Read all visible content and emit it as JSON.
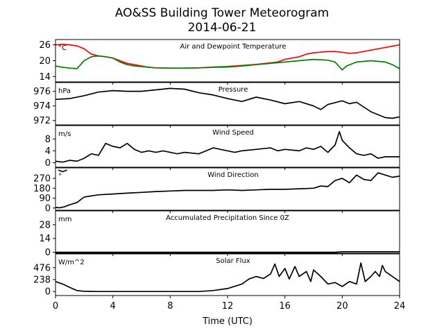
{
  "title_line1": "AO&SS Building Tower Meteorogram",
  "title_line2": "2014-06-21",
  "chart_data": {
    "type": "line",
    "xlabel": "Time (UTC)",
    "xlim": [
      0,
      24
    ],
    "xticks": [
      0,
      4,
      8,
      12,
      16,
      20,
      24
    ],
    "panels": [
      {
        "key": "temp",
        "title": "Air and Dewpoint Temperature",
        "unit": "°C",
        "ylim": [
          12,
          28
        ],
        "yticks": [
          14,
          20,
          26
        ],
        "series": [
          {
            "color": "#ff0000",
            "points": [
              [
                0,
                26
              ],
              [
                0.5,
                26.2
              ],
              [
                1,
                26
              ],
              [
                1.5,
                25.6
              ],
              [
                2,
                24.5
              ],
              [
                2.5,
                22.5
              ],
              [
                3,
                21.8
              ],
              [
                3.5,
                21.5
              ],
              [
                4,
                21
              ],
              [
                4.5,
                20
              ],
              [
                5,
                19
              ],
              [
                5.5,
                18.5
              ],
              [
                6,
                18
              ],
              [
                6.5,
                17.5
              ],
              [
                7,
                17.3
              ],
              [
                8,
                17.2
              ],
              [
                9,
                17.2
              ],
              [
                10,
                17.3
              ],
              [
                11,
                17.6
              ],
              [
                12,
                17.8
              ],
              [
                13,
                18.2
              ],
              [
                14,
                18.6
              ],
              [
                15,
                19.2
              ],
              [
                15.5,
                19.5
              ],
              [
                16,
                20.5
              ],
              [
                17,
                21.5
              ],
              [
                17.5,
                22.5
              ],
              [
                18,
                23
              ],
              [
                19,
                23.5
              ],
              [
                19.5,
                23.5
              ],
              [
                20,
                23.2
              ],
              [
                20.5,
                22.8
              ],
              [
                21,
                23
              ],
              [
                21.5,
                23.5
              ],
              [
                22,
                24
              ],
              [
                22.5,
                24.5
              ],
              [
                23,
                25
              ],
              [
                23.5,
                25.5
              ],
              [
                24,
                26
              ]
            ]
          },
          {
            "color": "#008000",
            "points": [
              [
                0,
                18
              ],
              [
                0.5,
                17.5
              ],
              [
                1,
                17.2
              ],
              [
                1.5,
                17
              ],
              [
                2,
                20
              ],
              [
                2.5,
                21.5
              ],
              [
                3,
                21.8
              ],
              [
                3.5,
                21.5
              ],
              [
                4,
                21
              ],
              [
                4.5,
                19.5
              ],
              [
                5,
                18.5
              ],
              [
                5.5,
                18
              ],
              [
                6,
                17.8
              ],
              [
                7,
                17.3
              ],
              [
                8,
                17.2
              ],
              [
                9,
                17.2
              ],
              [
                10,
                17.3
              ],
              [
                11,
                17.5
              ],
              [
                12,
                17.6
              ],
              [
                13,
                18
              ],
              [
                14,
                18.5
              ],
              [
                15,
                19
              ],
              [
                16,
                19.5
              ],
              [
                17,
                20
              ],
              [
                18,
                20.5
              ],
              [
                19,
                20.2
              ],
              [
                19.5,
                19.5
              ],
              [
                20,
                16.5
              ],
              [
                20.3,
                18
              ],
              [
                21,
                19.5
              ],
              [
                22,
                20
              ],
              [
                23,
                19.5
              ],
              [
                23.5,
                18.5
              ],
              [
                24,
                17
              ]
            ]
          }
        ]
      },
      {
        "key": "pressure",
        "title": "Pressure",
        "unit": "hPa",
        "ylim": [
          971.4,
          977.2
        ],
        "yticks": [
          972,
          974,
          976
        ],
        "series": [
          {
            "color": "#000000",
            "points": [
              [
                0,
                974.9
              ],
              [
                1,
                975
              ],
              [
                2,
                975.4
              ],
              [
                3,
                975.9
              ],
              [
                4,
                976.1
              ],
              [
                5,
                976
              ],
              [
                6,
                976
              ],
              [
                7,
                976.2
              ],
              [
                8,
                976.4
              ],
              [
                9,
                976.3
              ],
              [
                10,
                975.8
              ],
              [
                11,
                975.5
              ],
              [
                12,
                975
              ],
              [
                13,
                974.6
              ],
              [
                14,
                975.2
              ],
              [
                15,
                974.8
              ],
              [
                16,
                974.3
              ],
              [
                17,
                974.6
              ],
              [
                18,
                974
              ],
              [
                18.5,
                973.5
              ],
              [
                19,
                974.2
              ],
              [
                20,
                974.7
              ],
              [
                20.5,
                974.3
              ],
              [
                21,
                974.5
              ],
              [
                22,
                973.2
              ],
              [
                23,
                972.4
              ],
              [
                23.5,
                972.3
              ],
              [
                24,
                972.5
              ]
            ]
          }
        ]
      },
      {
        "key": "wspd",
        "title": "Wind Speed",
        "unit": "m/s",
        "ylim": [
          -1.5,
          12.5
        ],
        "yticks": [
          0,
          4,
          8
        ],
        "series": [
          {
            "color": "#000000",
            "points": [
              [
                0,
                0.5
              ],
              [
                0.5,
                0.2
              ],
              [
                1,
                0.8
              ],
              [
                1.5,
                0.5
              ],
              [
                2,
                1.5
              ],
              [
                2.5,
                3
              ],
              [
                3,
                2.5
              ],
              [
                3.5,
                6.5
              ],
              [
                4,
                5.5
              ],
              [
                4.5,
                5
              ],
              [
                5,
                6.5
              ],
              [
                5.5,
                4.5
              ],
              [
                6,
                3.5
              ],
              [
                6.5,
                4
              ],
              [
                7,
                3.5
              ],
              [
                7.5,
                4
              ],
              [
                8,
                3.5
              ],
              [
                8.5,
                3
              ],
              [
                9,
                3.5
              ],
              [
                10,
                3
              ],
              [
                11,
                5
              ],
              [
                11.5,
                4.5
              ],
              [
                12,
                4
              ],
              [
                12.5,
                3.5
              ],
              [
                13,
                4
              ],
              [
                14,
                4.5
              ],
              [
                15,
                5
              ],
              [
                15.5,
                4
              ],
              [
                16,
                4.5
              ],
              [
                17,
                4
              ],
              [
                17.5,
                5
              ],
              [
                18,
                4.5
              ],
              [
                18.5,
                5.5
              ],
              [
                19,
                3.5
              ],
              [
                19.5,
                6
              ],
              [
                19.8,
                10.5
              ],
              [
                20,
                7.5
              ],
              [
                20.5,
                5
              ],
              [
                21,
                3
              ],
              [
                21.5,
                2.5
              ],
              [
                22,
                3
              ],
              [
                22.5,
                1.5
              ],
              [
                23,
                2
              ],
              [
                24,
                2
              ]
            ]
          }
        ]
      },
      {
        "key": "wdir",
        "title": "Wind Direction",
        "unit": "°",
        "ylim": [
          -20,
          365
        ],
        "yticks": [
          0,
          90,
          180,
          270
        ],
        "series": [
          {
            "color": "#000000",
            "points": [
              [
                0,
                5
              ],
              [
                0.3,
                2
              ],
              [
                0.6,
                10
              ],
              [
                1,
                30
              ],
              [
                1.5,
                50
              ],
              [
                2,
                100
              ],
              [
                3,
                120
              ],
              [
                4,
                128
              ],
              [
                5,
                135
              ],
              [
                6,
                142
              ],
              [
                7,
                150
              ],
              [
                8,
                155
              ],
              [
                9,
                160
              ],
              [
                10,
                160
              ],
              [
                11,
                160
              ],
              [
                12,
                165
              ],
              [
                13,
                160
              ],
              [
                14,
                165
              ],
              [
                15,
                170
              ],
              [
                16,
                170
              ],
              [
                17,
                175
              ],
              [
                18,
                180
              ],
              [
                18.5,
                200
              ],
              [
                19,
                195
              ],
              [
                19.5,
                250
              ],
              [
                20,
                270
              ],
              [
                20.5,
                230
              ],
              [
                21,
                300
              ],
              [
                21.5,
                260
              ],
              [
                22,
                250
              ],
              [
                22.5,
                320
              ],
              [
                23,
                300
              ],
              [
                23.5,
                280
              ],
              [
                24,
                290
              ]
            ]
          },
          {
            "color": "#000000",
            "points": [
              [
                0.2,
                345
              ],
              [
                0.5,
                330
              ],
              [
                0.8,
                345
              ]
            ]
          }
        ]
      },
      {
        "key": "precip",
        "title": "Accumulated Precipitation Since 0Z",
        "unit": "mm",
        "ylim": [
          -1,
          42
        ],
        "yticks": [
          0,
          14,
          28
        ],
        "series": [
          {
            "color": "#000000",
            "points": [
              [
                0,
                0
              ],
              [
                19.5,
                0
              ],
              [
                20,
                0.5
              ],
              [
                24,
                0.5
              ]
            ]
          }
        ]
      },
      {
        "key": "solar",
        "title": "Solar Flux",
        "unit": "W/m^2",
        "ylim": [
          -80,
          750
        ],
        "yticks": [
          0,
          238,
          476
        ],
        "series": [
          {
            "color": "#000000",
            "points": [
              [
                0,
                200
              ],
              [
                0.5,
                150
              ],
              [
                1,
                80
              ],
              [
                1.5,
                20
              ],
              [
                2,
                5
              ],
              [
                3,
                0
              ],
              [
                8,
                0
              ],
              [
                10,
                0
              ],
              [
                11,
                20
              ],
              [
                12,
                60
              ],
              [
                13,
                150
              ],
              [
                13.5,
                250
              ],
              [
                14,
                300
              ],
              [
                14.5,
                260
              ],
              [
                15,
                350
              ],
              [
                15.3,
                550
              ],
              [
                15.6,
                300
              ],
              [
                16,
                460
              ],
              [
                16.3,
                250
              ],
              [
                16.7,
                500
              ],
              [
                17,
                300
              ],
              [
                17.5,
                400
              ],
              [
                17.8,
                200
              ],
              [
                18,
                430
              ],
              [
                18.5,
                300
              ],
              [
                19,
                150
              ],
              [
                19.5,
                180
              ],
              [
                20,
                100
              ],
              [
                20.5,
                200
              ],
              [
                21,
                150
              ],
              [
                21.3,
                570
              ],
              [
                21.6,
                200
              ],
              [
                22,
                300
              ],
              [
                22.3,
                400
              ],
              [
                22.6,
                300
              ],
              [
                22.8,
                520
              ],
              [
                23,
                400
              ],
              [
                24,
                200
              ]
            ]
          }
        ]
      }
    ]
  }
}
